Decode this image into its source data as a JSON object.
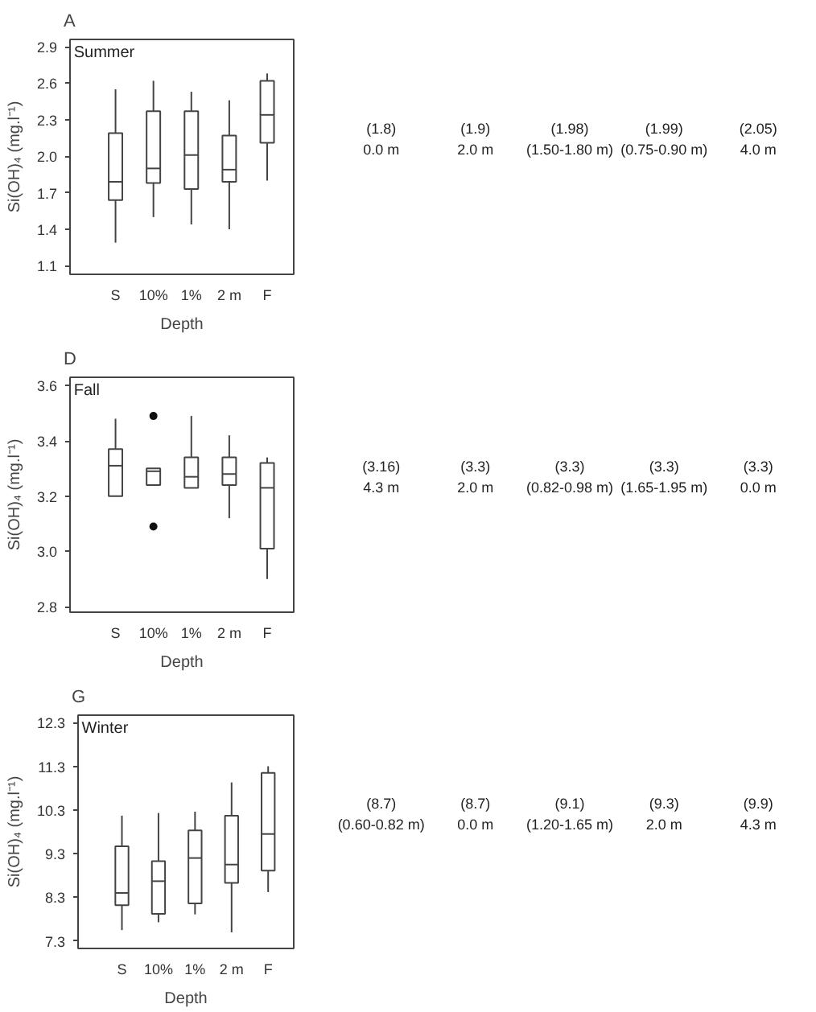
{
  "chart_data": [
    {
      "type": "box",
      "title": "A",
      "subtitle": "Summer",
      "xlabel": "Depth",
      "ylabel": "Si(OH)₄ (mg.l⁻¹)",
      "categories": [
        "S",
        "10%",
        "1%",
        "2 m",
        "F"
      ],
      "ylim": [
        1.03,
        2.96
      ],
      "yticks": [
        1.1,
        1.4,
        1.7,
        {
          "value": 2.0,
          "label": "2.0"
        },
        2.3,
        2.6,
        2.9
      ],
      "boxes": [
        {
          "low": 1.29,
          "q1": 1.64,
          "median": 1.79,
          "q3": 2.19,
          "high": 2.55
        },
        {
          "low": 1.5,
          "q1": 1.78,
          "median": 1.9,
          "q3": 2.37,
          "high": 2.62
        },
        {
          "low": 1.44,
          "q1": 1.73,
          "median": 2.01,
          "q3": 2.37,
          "high": 2.53
        },
        {
          "low": 1.4,
          "q1": 1.79,
          "median": 1.89,
          "q3": 2.17,
          "high": 2.46
        },
        {
          "low": 1.8,
          "q1": 2.11,
          "median": 2.34,
          "q3": 2.62,
          "high": 2.68
        }
      ]
    },
    {
      "type": "other",
      "categories": [
        "0.0 m",
        "2.0 m",
        "(1.50-1.80 m)",
        "(0.75-0.90 m)",
        "4.0 m"
      ],
      "value_labels": [
        "(1.8)",
        "(1.9)",
        "(1.98)",
        "(1.99)",
        "(2.05)"
      ]
    },
    {
      "type": "box",
      "title": "D",
      "subtitle": "Fall",
      "xlabel": "Depth",
      "ylabel": "Si(OH)₄ (mg.l⁻¹)",
      "categories": [
        "S",
        "10%",
        "1%",
        "2 m",
        "F"
      ],
      "ylim": [
        2.78,
        3.63
      ],
      "yticks": [
        2.8,
        {
          "value": 3.0,
          "label": "3.0"
        },
        3.2,
        3.4,
        3.6
      ],
      "boxes": [
        {
          "low": 3.2,
          "q1": 3.2,
          "median": 3.31,
          "q3": 3.37,
          "high": 3.48
        },
        {
          "low": 3.24,
          "q1": 3.24,
          "median": 3.29,
          "q3": 3.3,
          "high": 3.3,
          "outliers": [
            3.49,
            3.09
          ]
        },
        {
          "low": 3.23,
          "q1": 3.23,
          "median": 3.27,
          "q3": 3.34,
          "high": 3.49
        },
        {
          "low": 3.12,
          "q1": 3.24,
          "median": 3.28,
          "q3": 3.34,
          "high": 3.42
        },
        {
          "low": 2.9,
          "q1": 3.01,
          "median": 3.23,
          "q3": 3.32,
          "high": 3.34
        }
      ]
    },
    {
      "type": "other",
      "categories": [
        "4.3 m",
        "2.0 m",
        "(0.82-0.98 m)",
        "(1.65-1.95 m)",
        "0.0 m"
      ],
      "value_labels": [
        "(3.16)",
        "(3.3)",
        "(3.3)",
        "(3.3)",
        "(3.3)"
      ]
    },
    {
      "type": "box",
      "title": "G",
      "subtitle": "Winter",
      "xlabel": "Depth",
      "ylabel": "Si(OH)₄ (mg.l⁻¹)",
      "categories": [
        "S",
        "10%",
        "1%",
        "2 m",
        "F"
      ],
      "ylim": [
        7.13,
        12.47
      ],
      "yticks": [
        7.3,
        8.3,
        9.3,
        10.3,
        11.3,
        12.3
      ],
      "boxes": [
        {
          "low": 7.55,
          "q1": 8.12,
          "median": 8.4,
          "q3": 9.47,
          "high": 10.17
        },
        {
          "low": 7.73,
          "q1": 7.92,
          "median": 8.67,
          "q3": 9.13,
          "high": 10.23
        },
        {
          "low": 7.91,
          "q1": 8.16,
          "median": 9.2,
          "q3": 9.83,
          "high": 10.26
        },
        {
          "low": 7.5,
          "q1": 8.63,
          "median": 9.05,
          "q3": 10.17,
          "high": 10.93
        },
        {
          "low": 8.42,
          "q1": 8.91,
          "median": 9.75,
          "q3": 11.15,
          "high": 11.3
        }
      ]
    },
    {
      "type": "other",
      "categories": [
        "(0.60-0.82 m)",
        "0.0 m",
        "(1.20-1.65 m)",
        "2.0 m",
        "4.3 m"
      ],
      "value_labels": [
        "(8.7)",
        "(8.7)",
        "(9.1)",
        "(9.3)",
        "(9.9)"
      ]
    }
  ]
}
